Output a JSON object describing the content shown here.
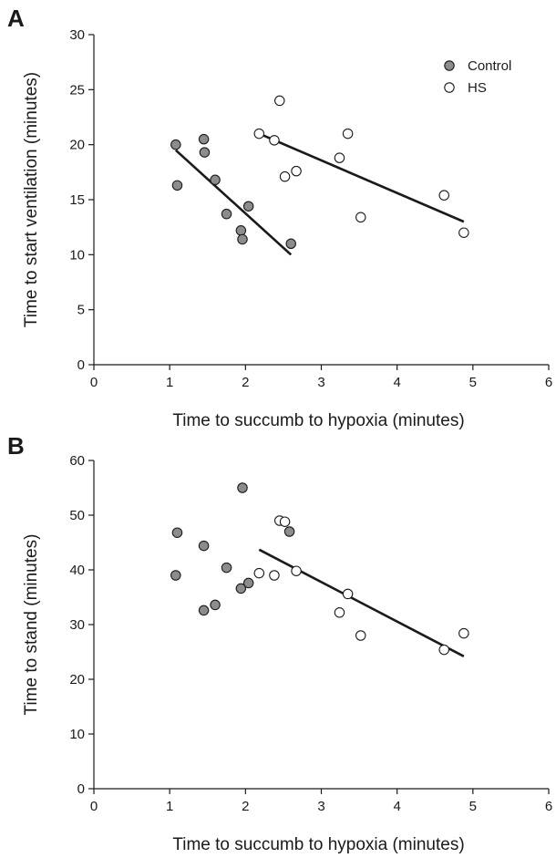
{
  "colors": {
    "control_fill": "#8c8c8c",
    "hs_fill": "#ffffff",
    "ink": "#1a1a1a"
  },
  "chart_data": [
    {
      "type": "scatter",
      "panel_label": "A",
      "title": "",
      "xlabel": "Time to succumb to hypoxia (minutes)",
      "ylabel": "Time to start ventilation (minutes)",
      "xlim": [
        0,
        6
      ],
      "ylim": [
        0,
        30
      ],
      "xticks": [
        0,
        1,
        2,
        3,
        4,
        5,
        6
      ],
      "yticks": [
        0,
        5,
        10,
        15,
        20,
        25,
        30
      ],
      "grid": false,
      "legend": {
        "placement": "top-right",
        "entries": [
          "Control",
          "HS"
        ]
      },
      "series": [
        {
          "name": "Control",
          "marker": "filled-circle",
          "points": [
            [
              1.08,
              20.0
            ],
            [
              1.1,
              16.3
            ],
            [
              1.45,
              20.5
            ],
            [
              1.46,
              19.3
            ],
            [
              1.6,
              16.8
            ],
            [
              1.75,
              13.7
            ],
            [
              1.94,
              12.2
            ],
            [
              1.96,
              11.4
            ],
            [
              2.04,
              14.4
            ],
            [
              2.6,
              11.0
            ]
          ],
          "fit_line": [
            [
              1.08,
              19.5
            ],
            [
              2.6,
              10.0
            ]
          ]
        },
        {
          "name": "HS",
          "marker": "open-circle",
          "points": [
            [
              2.18,
              21.0
            ],
            [
              2.38,
              20.4
            ],
            [
              2.45,
              24.0
            ],
            [
              2.52,
              17.1
            ],
            [
              2.67,
              17.6
            ],
            [
              3.24,
              18.8
            ],
            [
              3.35,
              21.0
            ],
            [
              3.52,
              13.4
            ],
            [
              4.62,
              15.4
            ],
            [
              4.88,
              12.0
            ]
          ],
          "fit_line": [
            [
              2.18,
              21.0
            ],
            [
              4.88,
              13.0
            ]
          ]
        }
      ]
    },
    {
      "type": "scatter",
      "panel_label": "B",
      "title": "",
      "xlabel": "Time to succumb to hypoxia (minutes)",
      "ylabel": "Time to stand (minutes)",
      "xlim": [
        0,
        6
      ],
      "ylim": [
        0,
        60
      ],
      "xticks": [
        0,
        1,
        2,
        3,
        4,
        5,
        6
      ],
      "yticks": [
        0,
        10,
        20,
        30,
        40,
        50,
        60
      ],
      "grid": false,
      "legend": null,
      "series": [
        {
          "name": "Control",
          "marker": "filled-circle",
          "points": [
            [
              1.1,
              46.8
            ],
            [
              1.08,
              39.0
            ],
            [
              1.45,
              44.4
            ],
            [
              1.45,
              32.6
            ],
            [
              1.6,
              33.6
            ],
            [
              1.75,
              40.4
            ],
            [
              1.94,
              36.6
            ],
            [
              1.96,
              55.0
            ],
            [
              2.04,
              37.6
            ],
            [
              2.58,
              47.0
            ]
          ],
          "fit_line": null
        },
        {
          "name": "HS",
          "marker": "open-circle",
          "points": [
            [
              2.18,
              39.4
            ],
            [
              2.38,
              39.0
            ],
            [
              2.45,
              49.0
            ],
            [
              2.52,
              48.8
            ],
            [
              2.67,
              39.8
            ],
            [
              3.24,
              32.2
            ],
            [
              3.35,
              35.6
            ],
            [
              3.52,
              28.0
            ],
            [
              4.62,
              25.4
            ],
            [
              4.88,
              28.4
            ]
          ],
          "fit_line": [
            [
              2.18,
              43.7
            ],
            [
              4.88,
              24.2
            ]
          ]
        }
      ]
    }
  ]
}
